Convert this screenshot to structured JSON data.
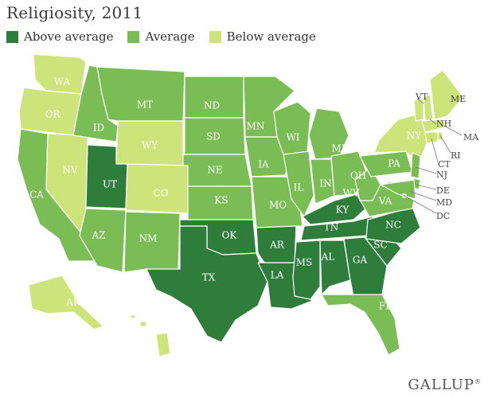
{
  "title": "Religiosity, 2011",
  "colors": {
    "above": "#2e7d3a",
    "average": "#7bbd55",
    "below": "#cde47a",
    "border": "#ffffff"
  },
  "legend": [
    {
      "key": "above",
      "label": "Above average"
    },
    {
      "key": "average",
      "label": "Average"
    },
    {
      "key": "below",
      "label": "Below average"
    }
  ],
  "states": [
    {
      "code": "WA",
      "cat": "below"
    },
    {
      "code": "OR",
      "cat": "below"
    },
    {
      "code": "CA",
      "cat": "average"
    },
    {
      "code": "NV",
      "cat": "below"
    },
    {
      "code": "ID",
      "cat": "average"
    },
    {
      "code": "MT",
      "cat": "average"
    },
    {
      "code": "WY",
      "cat": "below"
    },
    {
      "code": "UT",
      "cat": "above"
    },
    {
      "code": "AZ",
      "cat": "average"
    },
    {
      "code": "CO",
      "cat": "below"
    },
    {
      "code": "NM",
      "cat": "average"
    },
    {
      "code": "ND",
      "cat": "average"
    },
    {
      "code": "SD",
      "cat": "average"
    },
    {
      "code": "NE",
      "cat": "average"
    },
    {
      "code": "KS",
      "cat": "average"
    },
    {
      "code": "OK",
      "cat": "above"
    },
    {
      "code": "TX",
      "cat": "above"
    },
    {
      "code": "MN",
      "cat": "average"
    },
    {
      "code": "IA",
      "cat": "average"
    },
    {
      "code": "MO",
      "cat": "average"
    },
    {
      "code": "AR",
      "cat": "above"
    },
    {
      "code": "LA",
      "cat": "above"
    },
    {
      "code": "WI",
      "cat": "average"
    },
    {
      "code": "IL",
      "cat": "average"
    },
    {
      "code": "MI",
      "cat": "average"
    },
    {
      "code": "IN",
      "cat": "average"
    },
    {
      "code": "OH",
      "cat": "average"
    },
    {
      "code": "KY",
      "cat": "above"
    },
    {
      "code": "TN",
      "cat": "above"
    },
    {
      "code": "MS",
      "cat": "above"
    },
    {
      "code": "AL",
      "cat": "above"
    },
    {
      "code": "GA",
      "cat": "above"
    },
    {
      "code": "FL",
      "cat": "average"
    },
    {
      "code": "SC",
      "cat": "above"
    },
    {
      "code": "NC",
      "cat": "above"
    },
    {
      "code": "VA",
      "cat": "average"
    },
    {
      "code": "WV",
      "cat": "average"
    },
    {
      "code": "PA",
      "cat": "average"
    },
    {
      "code": "NY",
      "cat": "below"
    },
    {
      "code": "VT",
      "cat": "below"
    },
    {
      "code": "NH",
      "cat": "below"
    },
    {
      "code": "ME",
      "cat": "below"
    },
    {
      "code": "MA",
      "cat": "below"
    },
    {
      "code": "RI",
      "cat": "below"
    },
    {
      "code": "CT",
      "cat": "below"
    },
    {
      "code": "NJ",
      "cat": "average"
    },
    {
      "code": "DE",
      "cat": "average"
    },
    {
      "code": "MD",
      "cat": "average"
    },
    {
      "code": "DC",
      "cat": "below"
    },
    {
      "code": "AK",
      "cat": "below"
    },
    {
      "code": "HI",
      "cat": "below"
    }
  ],
  "brand": "GALLUP",
  "brand_mark": "®"
}
